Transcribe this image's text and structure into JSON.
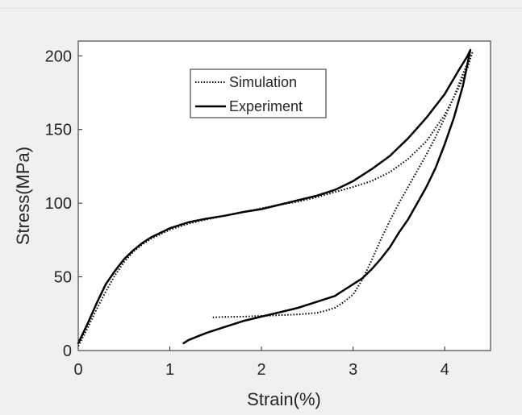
{
  "chart_data": {
    "type": "line",
    "title": "",
    "xlabel": "Strain(%)",
    "ylabel": "Stress(MPa)",
    "xlim": [
      0,
      4.5
    ],
    "ylim": [
      0,
      210
    ],
    "xticks": [
      0,
      1,
      2,
      3,
      4
    ],
    "yticks": [
      0,
      50,
      100,
      150,
      200
    ],
    "grid": false,
    "legend_position": "top-center",
    "series": [
      {
        "name": "Simulation",
        "style": "dotted",
        "color": "#000000",
        "x": [
          0.0,
          0.1,
          0.2,
          0.3,
          0.4,
          0.5,
          0.6,
          0.7,
          0.8,
          0.9,
          1.0,
          1.2,
          1.4,
          1.6,
          1.8,
          2.0,
          2.2,
          2.4,
          2.6,
          2.8,
          3.0,
          3.2,
          3.4,
          3.6,
          3.8,
          4.0,
          4.15,
          4.25,
          4.3,
          4.2,
          4.1,
          4.0,
          3.9,
          3.8,
          3.7,
          3.6,
          3.5,
          3.4,
          3.3,
          3.2,
          3.1,
          3.0,
          2.9,
          2.8,
          2.7,
          2.6,
          2.4,
          2.2,
          2.0,
          1.8,
          1.6,
          1.45
        ],
        "y": [
          3,
          15,
          28,
          40,
          51,
          60,
          67,
          72,
          76,
          79,
          82,
          86,
          89,
          91.5,
          94,
          96.5,
          99,
          101,
          104,
          107.5,
          111,
          115,
          121,
          130,
          142,
          160,
          178,
          192,
          202,
          188,
          172,
          158,
          145,
          133,
          122,
          111,
          100,
          88,
          75,
          61,
          48,
          38,
          33,
          29,
          27,
          25.5,
          24.5,
          24,
          23.5,
          23,
          22.8,
          22.5
        ]
      },
      {
        "name": "Experiment",
        "style": "solid",
        "color": "#000000",
        "x": [
          0.0,
          0.1,
          0.2,
          0.3,
          0.4,
          0.5,
          0.6,
          0.7,
          0.8,
          0.9,
          1.0,
          1.2,
          1.4,
          1.6,
          1.8,
          2.0,
          2.2,
          2.4,
          2.6,
          2.8,
          3.0,
          3.2,
          3.4,
          3.6,
          3.8,
          4.0,
          4.15,
          4.25,
          4.28,
          4.2,
          4.1,
          4.0,
          3.9,
          3.8,
          3.7,
          3.6,
          3.5,
          3.4,
          3.3,
          3.2,
          3.1,
          3.0,
          2.9,
          2.8,
          2.6,
          2.4,
          2.2,
          2.0,
          1.8,
          1.6,
          1.4,
          1.3,
          1.2,
          1.15
        ],
        "y": [
          5,
          18,
          32,
          45,
          54,
          62,
          68,
          73,
          77,
          80,
          83,
          87,
          89.5,
          91.5,
          94,
          96,
          99,
          102,
          105,
          109,
          115,
          123,
          132,
          144,
          158,
          174,
          190,
          200,
          204,
          180,
          158,
          140,
          124,
          111,
          100,
          89,
          80,
          70,
          62,
          55,
          49,
          45,
          41,
          37,
          33,
          29,
          26,
          23,
          20,
          16,
          12,
          9.5,
          7,
          5
        ]
      }
    ]
  }
}
